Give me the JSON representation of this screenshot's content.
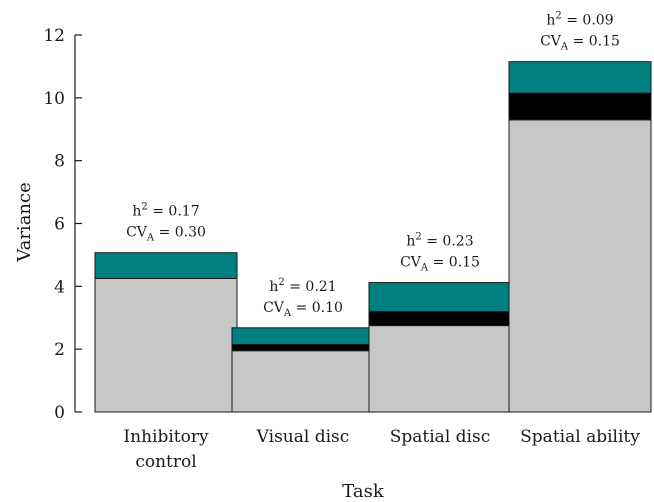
{
  "chart_data": {
    "type": "bar",
    "stacked": true,
    "xlabel": "Task",
    "ylabel": "Variance",
    "ylim": [
      0,
      12
    ],
    "yticks": [
      "0",
      "2",
      "4",
      "6",
      "8",
      "10",
      "12"
    ],
    "categories": [
      [
        "Inhibitory",
        "control"
      ],
      [
        "Visual disc"
      ],
      [
        "Spatial disc"
      ],
      [
        "Spatial ability"
      ]
    ],
    "series": [
      {
        "color": "#c6c8c8",
        "values": [
          4.25,
          1.95,
          2.75,
          9.3
        ]
      },
      {
        "color": "#000000",
        "values": [
          0.0,
          0.2,
          0.45,
          0.85
        ]
      },
      {
        "color": "#008080",
        "values": [
          0.82,
          0.53,
          0.92,
          1.0
        ]
      }
    ],
    "annotations": [
      {
        "h2": "h",
        "h2_exp": "2",
        "h2_val": " = 0.17",
        "cv": "CV",
        "cv_sub": "A",
        "cv_val": " = 0.30"
      },
      {
        "h2": "h",
        "h2_exp": "2",
        "h2_val": " = 0.21",
        "cv": "CV",
        "cv_sub": "A",
        "cv_val": " = 0.10"
      },
      {
        "h2": "h",
        "h2_exp": "2",
        "h2_val": " = 0.23",
        "cv": "CV",
        "cv_sub": "A",
        "cv_val": " = 0.15"
      },
      {
        "h2": "h",
        "h2_exp": "2",
        "h2_val": " = 0.09",
        "cv": "CV",
        "cv_sub": "A",
        "cv_val": " = 0.15"
      }
    ],
    "legend": "none",
    "grid": false
  }
}
